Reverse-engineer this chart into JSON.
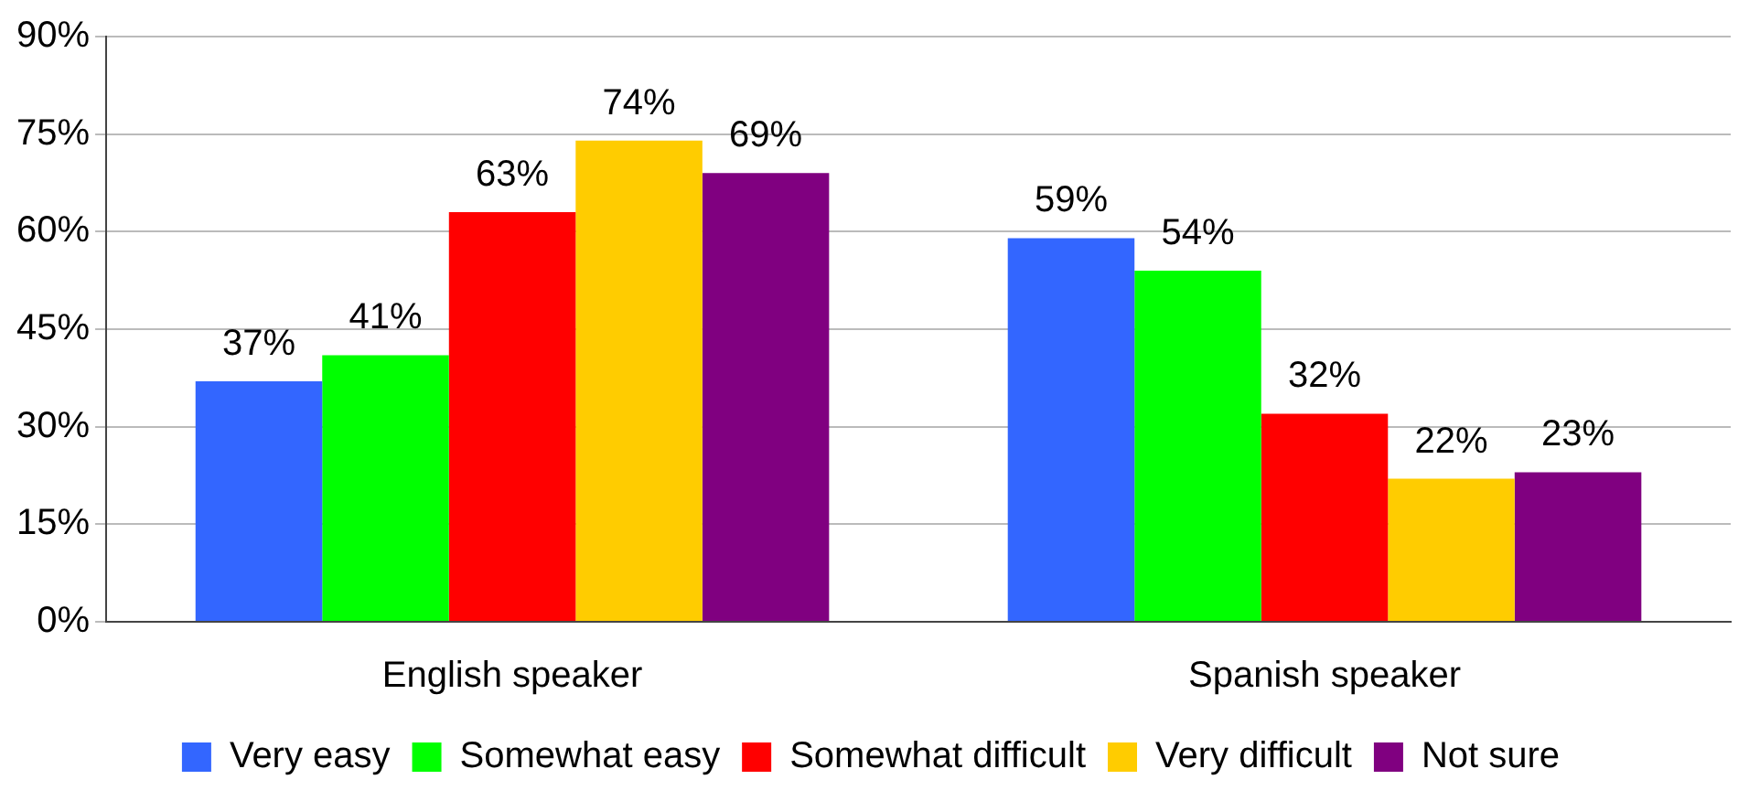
{
  "chart_data": {
    "type": "bar",
    "categories": [
      "English speaker",
      "Spanish speaker"
    ],
    "series": [
      {
        "name": "Very easy",
        "color": "#3366ff",
        "values": [
          37,
          59
        ]
      },
      {
        "name": "Somewhat easy",
        "color": "#00ff00",
        "values": [
          41,
          54
        ]
      },
      {
        "name": "Somewhat difficult",
        "color": "#ff0000",
        "values": [
          63,
          32
        ]
      },
      {
        "name": "Very difficult",
        "color": "#ffcc00",
        "values": [
          74,
          22
        ]
      },
      {
        "name": "Not sure",
        "color": "#800080",
        "values": [
          69,
          23
        ]
      }
    ],
    "ylim": [
      0,
      90
    ],
    "yticks": [
      {
        "value": 0,
        "label": "0%"
      },
      {
        "value": 15,
        "label": "15%"
      },
      {
        "value": 30,
        "label": "30%"
      },
      {
        "value": 45,
        "label": "45%"
      },
      {
        "value": 60,
        "label": "60%"
      },
      {
        "value": 75,
        "label": "75%"
      },
      {
        "value": 90,
        "label": "90%"
      }
    ],
    "value_labels": [
      [
        "37%",
        "59%"
      ],
      [
        "41%",
        "54%"
      ],
      [
        "63%",
        "32%"
      ],
      [
        "74%",
        "22%"
      ],
      [
        "69%",
        "23%"
      ]
    ],
    "grid": "y",
    "legend": "bottom"
  }
}
